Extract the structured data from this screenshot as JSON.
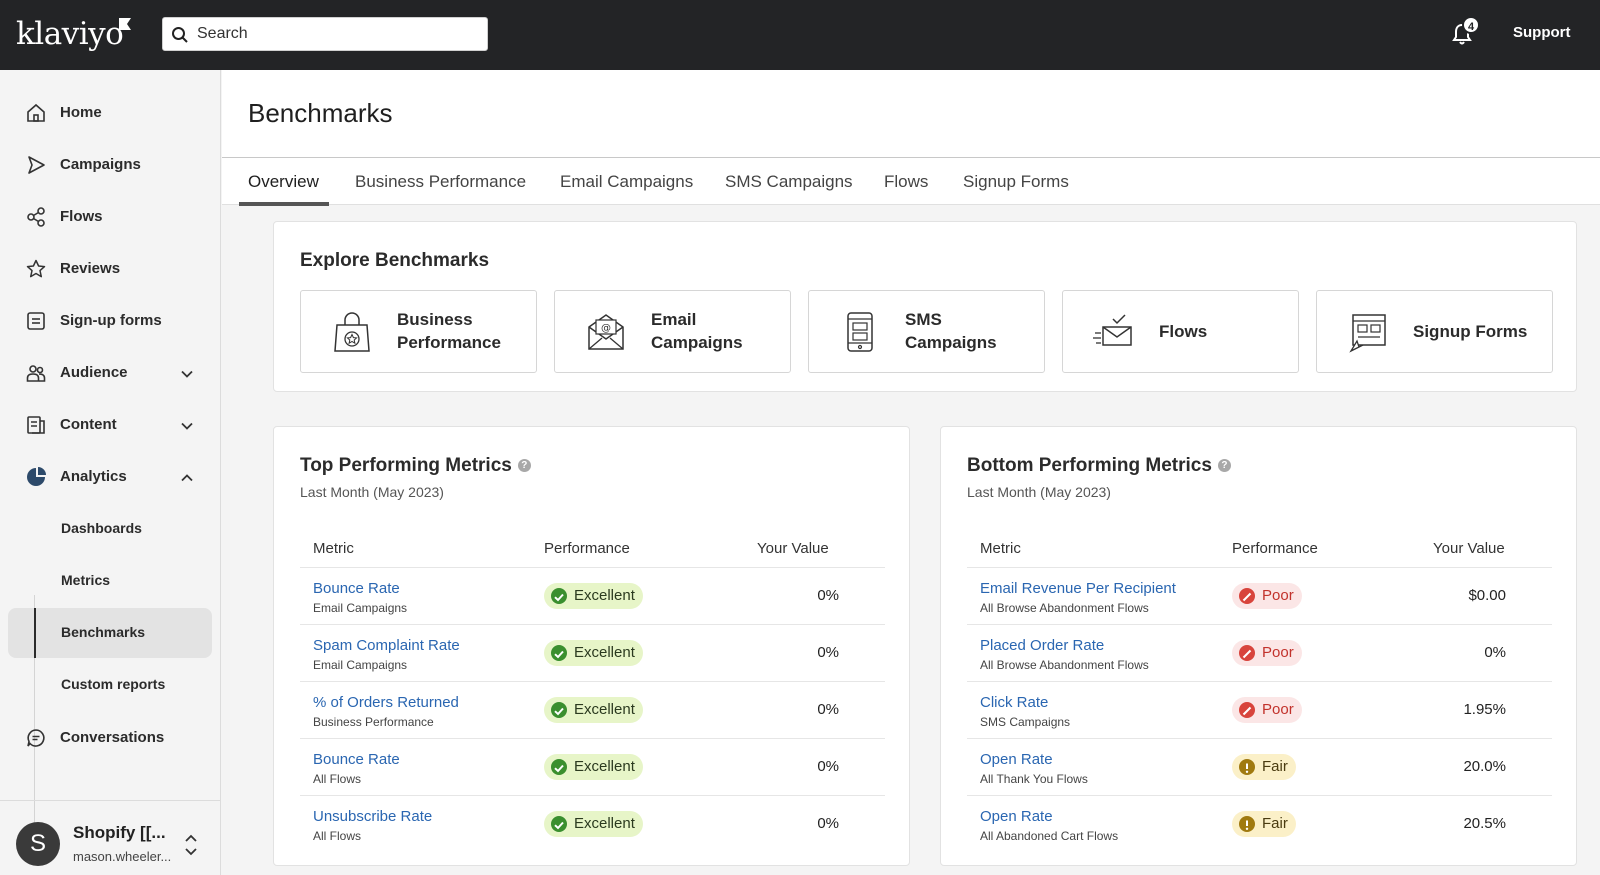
{
  "topbar": {
    "logo": "klaviyo",
    "search_placeholder": "Search",
    "notification_count": "4",
    "support_label": "Support"
  },
  "sidebar": {
    "items": [
      {
        "label": "Home",
        "icon": "home-icon"
      },
      {
        "label": "Campaigns",
        "icon": "send-icon"
      },
      {
        "label": "Flows",
        "icon": "flows-icon"
      },
      {
        "label": "Reviews",
        "icon": "star-icon"
      },
      {
        "label": "Sign-up forms",
        "icon": "form-icon"
      },
      {
        "label": "Audience",
        "icon": "people-icon"
      },
      {
        "label": "Content",
        "icon": "content-icon"
      },
      {
        "label": "Analytics",
        "icon": "analytics-icon"
      }
    ],
    "analytics_sub": [
      {
        "label": "Dashboards"
      },
      {
        "label": "Metrics"
      },
      {
        "label": "Benchmarks"
      },
      {
        "label": "Custom reports"
      }
    ],
    "conversations_label": "Conversations",
    "account": {
      "initial": "S",
      "name": "Shopify [[...",
      "email": "mason.wheeler..."
    }
  },
  "header": {
    "title": "Benchmarks",
    "tabs": [
      {
        "label": "Overview"
      },
      {
        "label": "Business Performance"
      },
      {
        "label": "Email Campaigns"
      },
      {
        "label": "SMS Campaigns"
      },
      {
        "label": "Flows"
      },
      {
        "label": "Signup Forms"
      }
    ]
  },
  "explore": {
    "title": "Explore Benchmarks",
    "tiles": [
      {
        "line1": "Business",
        "line2": "Performance",
        "icon": "shopping-bag-icon"
      },
      {
        "line1": "Email",
        "line2": "Campaigns",
        "icon": "email-icon"
      },
      {
        "line1": "SMS",
        "line2": "Campaigns",
        "icon": "phone-icon"
      },
      {
        "line1": "Flows",
        "line2": "",
        "icon": "flow-envelope-icon"
      },
      {
        "line1": "Signup Forms",
        "line2": "",
        "icon": "signup-form-icon"
      }
    ]
  },
  "top": {
    "title": "Top Performing Metrics",
    "period": "Last Month (May 2023)",
    "headers": {
      "metric": "Metric",
      "performance": "Performance",
      "value": "Your Value"
    },
    "rows": [
      {
        "name": "Bounce Rate",
        "sub": "Email Campaigns",
        "perf": "Excellent",
        "value": "0%"
      },
      {
        "name": "Spam Complaint Rate",
        "sub": "Email Campaigns",
        "perf": "Excellent",
        "value": "0%"
      },
      {
        "name": "% of Orders Returned",
        "sub": "Business Performance",
        "perf": "Excellent",
        "value": "0%"
      },
      {
        "name": "Bounce Rate",
        "sub": "All Flows",
        "perf": "Excellent",
        "value": "0%"
      },
      {
        "name": "Unsubscribe Rate",
        "sub": "All Flows",
        "perf": "Excellent",
        "value": "0%"
      }
    ]
  },
  "bottom": {
    "title": "Bottom Performing Metrics",
    "period": "Last Month (May 2023)",
    "headers": {
      "metric": "Metric",
      "performance": "Performance",
      "value": "Your Value"
    },
    "rows": [
      {
        "name": "Email Revenue Per Recipient",
        "sub": "All Browse Abandonment Flows",
        "perf": "Poor",
        "value": "$0.00"
      },
      {
        "name": "Placed Order Rate",
        "sub": "All Browse Abandonment Flows",
        "perf": "Poor",
        "value": "0%"
      },
      {
        "name": "Click Rate",
        "sub": "SMS Campaigns",
        "perf": "Poor",
        "value": "1.95%"
      },
      {
        "name": "Open Rate",
        "sub": "All Thank You Flows",
        "perf": "Fair",
        "value": "20.0%"
      },
      {
        "name": "Open Rate",
        "sub": "All Abandoned Cart Flows",
        "perf": "Fair",
        "value": "20.5%"
      }
    ]
  }
}
